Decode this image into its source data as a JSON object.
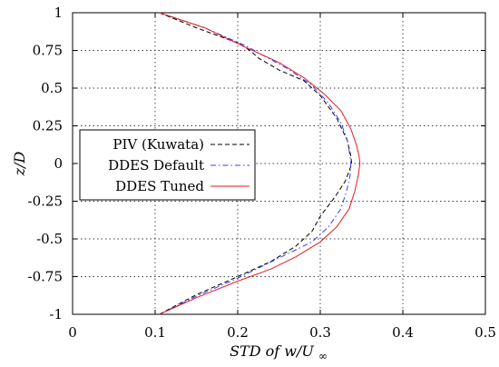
{
  "chart_data": {
    "type": "line",
    "xlabel": "STD of w/U∞",
    "ylabel": "z/D",
    "xlim": [
      0,
      0.5
    ],
    "ylim": [
      -1,
      1
    ],
    "xticks": [
      "0",
      "0.1",
      "0.2",
      "0.3",
      "0.4",
      "0.5"
    ],
    "yticks": [
      "1",
      "0.75",
      "0.5",
      "0.25",
      "0",
      "-0.25",
      "-0.5",
      "-0.75",
      "-1"
    ],
    "grid": true,
    "legend_position": "center-left",
    "series": [
      {
        "name": "PIV (Kuwata)",
        "color": "#000000",
        "dash": "dashed",
        "x": [
          0.105,
          0.15,
          0.2,
          0.215,
          0.225,
          0.25,
          0.28,
          0.3,
          0.32,
          0.333,
          0.337,
          0.338,
          0.335,
          0.33,
          0.318,
          0.3,
          0.29,
          0.27,
          0.24,
          0.2,
          0.15,
          0.105
        ],
        "y": [
          1.0,
          0.9,
          0.8,
          0.75,
          0.7,
          0.62,
          0.55,
          0.45,
          0.3,
          0.15,
          0.05,
          0.0,
          -0.05,
          -0.12,
          -0.22,
          -0.35,
          -0.45,
          -0.55,
          -0.65,
          -0.75,
          -0.87,
          -1.0
        ]
      },
      {
        "name": "DDES Default",
        "color": "#3a3aff",
        "dash": "dashdot",
        "x": [
          0.105,
          0.16,
          0.21,
          0.23,
          0.26,
          0.29,
          0.31,
          0.325,
          0.333,
          0.336,
          0.337,
          0.336,
          0.332,
          0.325,
          0.31,
          0.29,
          0.26,
          0.23,
          0.2,
          0.15,
          0.105
        ],
        "y": [
          1.0,
          0.9,
          0.78,
          0.72,
          0.63,
          0.52,
          0.4,
          0.27,
          0.15,
          0.05,
          0.0,
          -0.08,
          -0.18,
          -0.3,
          -0.42,
          -0.52,
          -0.6,
          -0.68,
          -0.76,
          -0.88,
          -1.0
        ]
      },
      {
        "name": "DDES Tuned",
        "color": "#e8191e",
        "dash": "solid",
        "x": [
          0.105,
          0.16,
          0.21,
          0.25,
          0.28,
          0.305,
          0.325,
          0.337,
          0.344,
          0.347,
          0.348,
          0.346,
          0.342,
          0.335,
          0.32,
          0.3,
          0.27,
          0.24,
          0.2,
          0.15,
          0.105
        ],
        "y": [
          1.0,
          0.9,
          0.77,
          0.67,
          0.57,
          0.46,
          0.35,
          0.23,
          0.12,
          0.05,
          0.0,
          -0.08,
          -0.18,
          -0.3,
          -0.42,
          -0.52,
          -0.62,
          -0.7,
          -0.78,
          -0.89,
          -1.0
        ]
      }
    ]
  }
}
